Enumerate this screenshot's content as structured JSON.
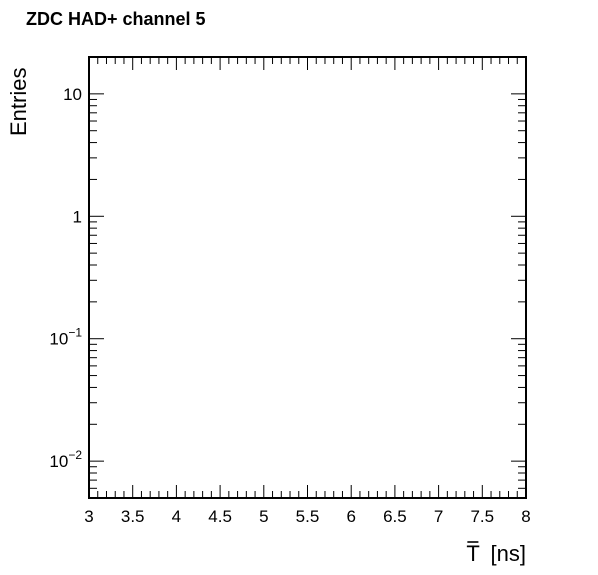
{
  "chart_data": {
    "type": "line",
    "title": "ZDC HAD+ channel 5",
    "xlabel_symbol": "T",
    "xlabel_unit": "[ns]",
    "ylabel": "Entries",
    "xlim": [
      3,
      8
    ],
    "ylim": [
      0.005,
      20
    ],
    "yscale": "log",
    "grid": false,
    "x_ticks": [
      {
        "value": 3,
        "label": "3"
      },
      {
        "value": 3.5,
        "label": "3.5"
      },
      {
        "value": 4,
        "label": "4"
      },
      {
        "value": 4.5,
        "label": "4.5"
      },
      {
        "value": 5,
        "label": "5"
      },
      {
        "value": 5.5,
        "label": "5.5"
      },
      {
        "value": 6,
        "label": "6"
      },
      {
        "value": 6.5,
        "label": "6.5"
      },
      {
        "value": 7,
        "label": "7"
      },
      {
        "value": 7.5,
        "label": "7.5"
      },
      {
        "value": 8,
        "label": "8"
      }
    ],
    "y_ticks": [
      {
        "value": 0.01,
        "base": "10",
        "exp": "−2"
      },
      {
        "value": 0.1,
        "base": "10",
        "exp": "−1"
      },
      {
        "value": 1,
        "base": "1",
        "exp": ""
      },
      {
        "value": 10,
        "base": "10",
        "exp": ""
      }
    ],
    "series": []
  }
}
